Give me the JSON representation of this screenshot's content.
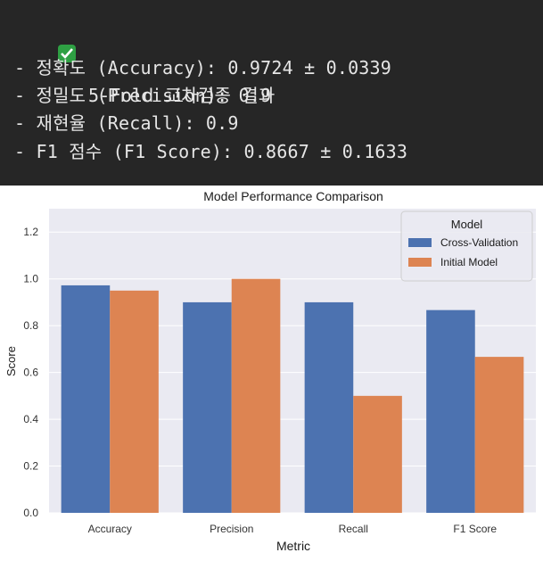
{
  "console": {
    "check_icon": "check-icon",
    "accent": "#2ea043",
    "header": "5-Fold 교차검증 결과",
    "lines": [
      "- 정확도 (Accuracy): 0.9724 ± 0.0339",
      "- 정밀도 (Precision): 0.9",
      "- 재현율 (Recall): 0.9",
      "- F1 점수 (F1 Score): 0.8667 ± 0.1633"
    ]
  },
  "chart_data": {
    "type": "bar",
    "title": "Model Performance Comparison",
    "xlabel": "Metric",
    "ylabel": "Score",
    "categories": [
      "Accuracy",
      "Precision",
      "Recall",
      "F1 Score"
    ],
    "ylim": [
      0,
      1.3
    ],
    "yticks": [
      0.0,
      0.2,
      0.4,
      0.6,
      0.8,
      1.0,
      1.2
    ],
    "grid": true,
    "legend_title": "Model",
    "legend_position": "top-right",
    "series": [
      {
        "name": "Cross-Validation",
        "color": "#4c72b0",
        "values": [
          0.9724,
          0.9,
          0.9,
          0.8667
        ]
      },
      {
        "name": "Initial Model",
        "color": "#dd8452",
        "values": [
          0.95,
          1.0,
          0.5,
          0.6667
        ]
      }
    ]
  }
}
